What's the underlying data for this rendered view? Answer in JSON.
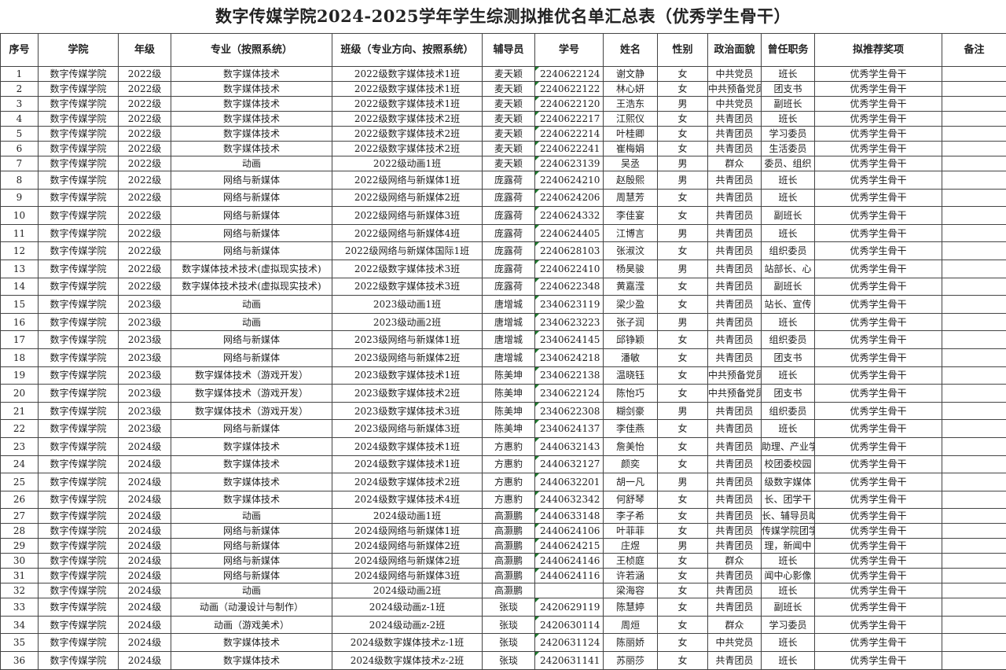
{
  "title": "数字传媒学院2024-2025学年学生综测拟推优名单汇总表（优秀学生骨干）",
  "columns": [
    "序号",
    "学院",
    "年级",
    "专业（按照系统）",
    "班级（专业方向、按照系统）",
    "辅导员",
    "学号",
    "姓名",
    "性别",
    "政治面貌",
    "曾任职务",
    "拟推荐奖项",
    "备注"
  ],
  "rows": [
    [
      "1",
      "数字传媒学院",
      "2022级",
      "数字媒体技术",
      "2022级数字媒体技术1班",
      "麦天颖",
      "2240622124",
      "谢文静",
      "女",
      "中共党员",
      "班长",
      "优秀学生骨干",
      ""
    ],
    [
      "2",
      "数字传媒学院",
      "2022级",
      "数字媒体技术",
      "2022级数字媒体技术1班",
      "麦天颖",
      "2240622122",
      "林心妍",
      "女",
      "中共预备党员",
      "团支书",
      "优秀学生骨干",
      ""
    ],
    [
      "3",
      "数字传媒学院",
      "2022级",
      "数字媒体技术",
      "2022级数字媒体技术1班",
      "麦天颖",
      "2240622120",
      "王浩东",
      "男",
      "中共党员",
      "副班长",
      "优秀学生骨干",
      ""
    ],
    [
      "4",
      "数字传媒学院",
      "2022级",
      "数字媒体技术",
      "2022级数字媒体技术2班",
      "麦天颖",
      "2240622217",
      "江熙仪",
      "女",
      "共青团员",
      "班长",
      "优秀学生骨干",
      ""
    ],
    [
      "5",
      "数字传媒学院",
      "2022级",
      "数字媒体技术",
      "2022级数字媒体技术2班",
      "麦天颖",
      "2240622214",
      "叶桂卿",
      "女",
      "共青团员",
      "学习委员",
      "优秀学生骨干",
      ""
    ],
    [
      "6",
      "数字传媒学院",
      "2022级",
      "数字媒体技术",
      "2022级数字媒体技术2班",
      "麦天颖",
      "2240622241",
      "崔梅娟",
      "女",
      "共青团员",
      "生活委员",
      "优秀学生骨干",
      ""
    ],
    [
      "7",
      "数字传媒学院",
      "2022级",
      "动画",
      "2022级动画1班",
      "麦天颖",
      "2240623139",
      "吴丞",
      "男",
      "群众",
      "委员、组织",
      "优秀学生骨干",
      ""
    ],
    [
      "8",
      "数字传媒学院",
      "2022级",
      "网络与新媒体",
      "2022级网络与新媒体1班",
      "庞露荷",
      "2240624210",
      "赵殷熙",
      "男",
      "共青团员",
      "班长",
      "优秀学生骨干",
      ""
    ],
    [
      "9",
      "数字传媒学院",
      "2022级",
      "网络与新媒体",
      "2022级网络与新媒体2班",
      "庞露荷",
      "2240624206",
      "周慧芳",
      "女",
      "共青团员",
      "班长",
      "优秀学生骨干",
      ""
    ],
    [
      "10",
      "数字传媒学院",
      "2022级",
      "网络与新媒体",
      "2022级网络与新媒体3班",
      "庞露荷",
      "2240624332",
      "李佳宴",
      "女",
      "共青团员",
      "副班长",
      "优秀学生骨干",
      ""
    ],
    [
      "11",
      "数字传媒学院",
      "2022级",
      "网络与新媒体",
      "2022级网络与新媒体4班",
      "庞露荷",
      "2240624405",
      "江博言",
      "男",
      "共青团员",
      "班长",
      "优秀学生骨干",
      ""
    ],
    [
      "12",
      "数字传媒学院",
      "2022级",
      "网络与新媒体",
      "2022级网络与新媒体国际1班",
      "庞露荷",
      "2240628103",
      "张淑汶",
      "女",
      "共青团员",
      "组织委员",
      "优秀学生骨干",
      ""
    ],
    [
      "13",
      "数字传媒学院",
      "2022级",
      "数字媒体技术技术(虚拟现实技术)",
      "2022级数字媒体技术3班",
      "庞露荷",
      "2240622410",
      "杨昊骏",
      "男",
      "共青团员",
      "站部长、心",
      "优秀学生骨干",
      ""
    ],
    [
      "14",
      "数字传媒学院",
      "2022级",
      "数字媒体技术技术(虚拟现实技术)",
      "2022级数字媒体技术3班",
      "庞露荷",
      "2240622348",
      "黄嘉滢",
      "女",
      "共青团员",
      "副班长",
      "优秀学生骨干",
      ""
    ],
    [
      "15",
      "数字传媒学院",
      "2023级",
      "动画",
      "2023级动画1班",
      "唐增城",
      "2340623119",
      "梁少盈",
      "女",
      "共青团员",
      "站长、宣传",
      "优秀学生骨干",
      ""
    ],
    [
      "16",
      "数字传媒学院",
      "2023级",
      "动画",
      "2023级动画2班",
      "唐增城",
      "2340623223",
      "张子润",
      "男",
      "共青团员",
      "班长",
      "优秀学生骨干",
      ""
    ],
    [
      "17",
      "数字传媒学院",
      "2023级",
      "网络与新媒体",
      "2023级网络与新媒体1班",
      "唐增城",
      "2340624145",
      "邱铮颖",
      "女",
      "共青团员",
      "组织委员",
      "优秀学生骨干",
      ""
    ],
    [
      "18",
      "数字传媒学院",
      "2023级",
      "网络与新媒体",
      "2023级网络与新媒体2班",
      "唐增城",
      "2340624218",
      "潘敏",
      "女",
      "共青团员",
      "团支书",
      "优秀学生骨干",
      ""
    ],
    [
      "19",
      "数字传媒学院",
      "2023级",
      "数字媒体技术（游戏开发）",
      "2023级数字媒体技术1班",
      "陈美坤",
      "2340622138",
      "温晓钰",
      "女",
      "中共预备党员",
      "班长",
      "优秀学生骨干",
      ""
    ],
    [
      "20",
      "数字传媒学院",
      "2023级",
      "数字媒体技术（游戏开发）",
      "2023级数字媒体技术2班",
      "陈美坤",
      "2340622124",
      "陈怡巧",
      "女",
      "中共预备党员",
      "团支书",
      "优秀学生骨干",
      ""
    ],
    [
      "21",
      "数字传媒学院",
      "2023级",
      "数字媒体技术（游戏开发）",
      "2023级数字媒体技术3班",
      "陈美坤",
      "2340622308",
      "糊剑豪",
      "男",
      "共青团员",
      "组织委员",
      "优秀学生骨干",
      ""
    ],
    [
      "22",
      "数字传媒学院",
      "2023级",
      "网络与新媒体",
      "2023级网络与新媒体3班",
      "陈美坤",
      "2340624137",
      "李佳燕",
      "女",
      "共青团员",
      "班长",
      "优秀学生骨干",
      ""
    ],
    [
      "23",
      "数字传媒学院",
      "2024级",
      "数字媒体技术",
      "2024级数字媒体技术1班",
      "方惠豹",
      "2440632143",
      "詹美怡",
      "女",
      "共青团员",
      "助理、产业学",
      "优秀学生骨干",
      ""
    ],
    [
      "24",
      "数字传媒学院",
      "2024级",
      "数字媒体技术",
      "2024级数字媒体技术1班",
      "方惠豹",
      "2440632127",
      "颜奕",
      "女",
      "共青团员",
      "校团委校园",
      "优秀学生骨干",
      ""
    ],
    [
      "25",
      "数字传媒学院",
      "2024级",
      "数字媒体技术",
      "2024级数字媒体技术2班",
      "方惠豹",
      "2440632201",
      "胡一凡",
      "男",
      "共青团员",
      "级数字媒体",
      "优秀学生骨干",
      ""
    ],
    [
      "26",
      "数字传媒学院",
      "2024级",
      "数字媒体技术",
      "2024级数字媒体技术4班",
      "方惠豹",
      "2440632342",
      "何舒琴",
      "女",
      "共青团员",
      "长、团学干",
      "优秀学生骨干",
      ""
    ],
    [
      "27",
      "数字传媒学院",
      "2024级",
      "动画",
      "2024级动画1班",
      "高灏鹏",
      "2440633148",
      "李子希",
      "女",
      "共青团员",
      "长、辅导员助",
      "优秀学生骨干",
      ""
    ],
    [
      "28",
      "数字传媒学院",
      "2024级",
      "网络与新媒体",
      "2024级网络与新媒体1班",
      "高灏鹏",
      "2440624106",
      "叶菲菲",
      "女",
      "共青团员",
      "传媒学院团学",
      "优秀学生骨干",
      ""
    ],
    [
      "29",
      "数字传媒学院",
      "2024级",
      "网络与新媒体",
      "2024级网络与新媒体2班",
      "高灏鹏",
      "2440624215",
      "庄煜",
      "男",
      "共青团员",
      "理，新闻中",
      "优秀学生骨干",
      ""
    ],
    [
      "30",
      "数字传媒学院",
      "2024级",
      "网络与新媒体",
      "2024级网络与新媒体2班",
      "高灏鹏",
      "2440624146",
      "王桢庭",
      "女",
      "群众",
      "班长",
      "优秀学生骨干",
      ""
    ],
    [
      "31",
      "数字传媒学院",
      "2024级",
      "网络与新媒体",
      "2024级网络与新媒体3班",
      "高灏鹏",
      "2440624116",
      "许若涵",
      "女",
      "共青团员",
      "闻中心影像",
      "优秀学生骨干",
      ""
    ],
    [
      "32",
      "数字传媒学院",
      "2024级",
      "动画",
      "2024级动画2班",
      "高灏鹏",
      "",
      "梁海容",
      "女",
      "共青团员",
      "班长",
      "优秀学生骨干",
      ""
    ],
    [
      "33",
      "数字传媒学院",
      "2024级",
      "动画（动漫设计与制作）",
      "2024级动画z-1班",
      "张琰",
      "2420629119",
      "陈慧婷",
      "女",
      "共青团员",
      "副班长",
      "优秀学生骨干",
      ""
    ],
    [
      "34",
      "数字传媒学院",
      "2024级",
      "动画（游戏美术）",
      "2024级动画z-2班",
      "张琰",
      "2420630114",
      "周烜",
      "女",
      "群众",
      "学习委员",
      "优秀学生骨干",
      ""
    ],
    [
      "35",
      "数字传媒学院",
      "2024级",
      "数字媒体技术",
      "2024级数字媒体技术z-1班",
      "张琰",
      "2420631124",
      "陈丽娇",
      "女",
      "中共党员",
      "班长",
      "优秀学生骨干",
      ""
    ],
    [
      "36",
      "数字传媒学院",
      "2024级",
      "数字媒体技术",
      "2024级数字媒体技术z-2班",
      "张琰",
      "2420631141",
      "苏丽莎",
      "女",
      "共青团员",
      "班长",
      "优秀学生骨干",
      ""
    ]
  ]
}
